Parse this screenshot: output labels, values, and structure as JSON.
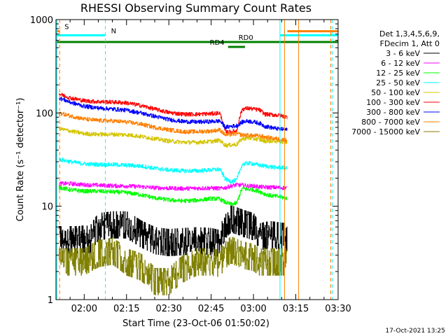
{
  "chart_data": {
    "type": "line",
    "title": "RHESSI Observing Summary Count Rates",
    "xlabel": "Start Time (23-Oct-06 01:50:02)",
    "ylabel": "Count Rate (s⁻¹ detector⁻¹)",
    "y_scale": "log",
    "ylim": [
      1,
      1000
    ],
    "xlim_minutes": [
      0,
      100
    ],
    "x_ticks": [
      {
        "label": "02:00",
        "minute": 10
      },
      {
        "label": "02:15",
        "minute": 25
      },
      {
        "label": "02:30",
        "minute": 40
      },
      {
        "label": "02:45",
        "minute": 55
      },
      {
        "label": "03:00",
        "minute": 70
      },
      {
        "label": "03:15",
        "minute": 85
      },
      {
        "label": "03:30",
        "minute": 100
      }
    ],
    "y_ticks": [
      {
        "label": "1",
        "value": 1
      },
      {
        "label": "10",
        "value": 10
      },
      {
        "label": "100",
        "value": 100
      },
      {
        "label": "1000",
        "value": 1000
      }
    ],
    "legend": {
      "header_line1": "Det 1,3,4,5,6,9,",
      "header_line2": "FDecim 1, Att 0",
      "placement": "right"
    },
    "series": [
      {
        "name": "3 - 6 keV",
        "color": "#000000",
        "x": [
          1,
          5,
          8,
          10,
          12,
          15,
          20,
          25,
          30,
          35,
          40,
          45,
          50,
          55,
          58,
          60,
          62,
          64,
          66,
          68,
          70,
          72,
          74,
          76,
          78,
          80,
          82
        ],
        "y": [
          4.5,
          4.5,
          4.5,
          4.6,
          4.5,
          6.2,
          6.5,
          6.5,
          5.2,
          4.4,
          4.2,
          4.3,
          4.4,
          4.3,
          4.1,
          6.5,
          7.5,
          7.2,
          6.8,
          6.5,
          6.2,
          4.8,
          5.0,
          5.1,
          5.0,
          4.9,
          4.8
        ]
      },
      {
        "name": "6 - 12 keV",
        "color": "#ff00ff",
        "x": [
          1,
          5,
          10,
          15,
          20,
          25,
          30,
          35,
          40,
          45,
          50,
          55,
          58,
          60,
          62,
          64,
          66,
          68,
          70,
          72,
          74,
          76,
          78,
          80,
          82
        ],
        "y": [
          17.5,
          17.5,
          17,
          16.8,
          16.6,
          16.5,
          16.2,
          15.8,
          15.6,
          15.5,
          15.6,
          15.7,
          15.5,
          15.8,
          16.5,
          17,
          16.8,
          16.5,
          16.5,
          16.2,
          16.0,
          16.0,
          15.9,
          15.8,
          15.7
        ]
      },
      {
        "name": "12 - 25 keV",
        "color": "#00ff00",
        "x": [
          1,
          5,
          10,
          15,
          20,
          25,
          30,
          35,
          40,
          45,
          50,
          55,
          58,
          60,
          62,
          64,
          66,
          68,
          70,
          72,
          74,
          76,
          78,
          80,
          82
        ],
        "y": [
          16,
          15,
          14.5,
          14.5,
          14.3,
          14.0,
          13.3,
          12.3,
          11.7,
          11.4,
          11.6,
          12.1,
          12.0,
          11.0,
          10.5,
          10.8,
          15.5,
          15.2,
          15.0,
          14.5,
          13.5,
          13.0,
          12.8,
          12.5,
          12.2
        ]
      },
      {
        "name": "25 - 50 keV",
        "color": "#00ffff",
        "x": [
          1,
          5,
          10,
          15,
          20,
          25,
          30,
          35,
          40,
          45,
          50,
          55,
          58,
          60,
          62,
          64,
          66,
          68,
          70,
          72,
          74,
          76,
          78,
          80,
          82
        ],
        "y": [
          32,
          30,
          28.5,
          28,
          28,
          27.5,
          27,
          25.5,
          24.5,
          24,
          24,
          24.5,
          25,
          19.5,
          18.5,
          19,
          28,
          29,
          28.5,
          27.5,
          27,
          26.5,
          26,
          26,
          25.5
        ]
      },
      {
        "name": "50 - 100 keV",
        "color": "#d4c400",
        "x": [
          1,
          5,
          10,
          15,
          20,
          25,
          30,
          35,
          40,
          45,
          50,
          55,
          58,
          60,
          62,
          64,
          66,
          68,
          70,
          72,
          74,
          76,
          78,
          80,
          82
        ],
        "y": [
          68,
          64,
          60,
          59,
          59,
          58.5,
          56,
          53,
          50,
          48.5,
          48.5,
          49.5,
          51,
          45,
          45.5,
          46,
          53,
          54,
          53,
          52,
          50,
          50,
          50,
          49.5,
          49
        ]
      },
      {
        "name": "100 - 300 keV",
        "color": "#ff0000",
        "x": [
          1,
          5,
          10,
          15,
          20,
          25,
          30,
          35,
          40,
          45,
          50,
          55,
          58,
          60,
          62,
          64,
          66,
          68,
          70,
          72,
          74,
          76,
          78,
          80,
          82
        ],
        "y": [
          160,
          145,
          135,
          132,
          131,
          128,
          120,
          110,
          101,
          97,
          97,
          98,
          100,
          62,
          63,
          64,
          110,
          112,
          110,
          108,
          97,
          96,
          95,
          93,
          90
        ]
      },
      {
        "name": "300 - 800 keV",
        "color": "#0000ff",
        "x": [
          1,
          5,
          10,
          15,
          20,
          25,
          30,
          35,
          40,
          45,
          50,
          55,
          58,
          60,
          62,
          64,
          66,
          68,
          70,
          72,
          74,
          76,
          78,
          80,
          82
        ],
        "y": [
          145,
          130,
          118,
          113,
          110,
          107,
          100,
          92,
          85,
          81,
          80,
          81,
          82,
          70,
          72,
          73,
          80,
          82,
          80,
          78,
          72,
          70,
          68,
          67,
          66
        ]
      },
      {
        "name": "800 - 7000 keV",
        "color": "#ff8000",
        "x": [
          1,
          5,
          10,
          15,
          20,
          25,
          30,
          35,
          40,
          45,
          50,
          55,
          58,
          60,
          62,
          64,
          66,
          68,
          70,
          72,
          74,
          76,
          78,
          80,
          82
        ],
        "y": [
          100,
          93,
          86,
          83,
          82,
          80,
          76,
          70,
          66,
          63,
          63,
          64,
          66,
          58,
          59,
          60,
          58,
          58,
          57,
          57,
          55,
          54,
          53,
          52,
          51
        ]
      },
      {
        "name": "7000 - 15000 keV",
        "color": "#808000",
        "x": [
          1,
          5,
          10,
          15,
          20,
          25,
          30,
          35,
          40,
          45,
          50,
          55,
          58,
          60,
          62,
          64,
          66,
          68,
          70,
          72,
          74,
          76,
          78,
          80,
          82
        ],
        "y": [
          2.6,
          2.6,
          2.6,
          3.2,
          3.4,
          2.6,
          2.3,
          1.6,
          1.6,
          2.2,
          2.6,
          2.6,
          2.5,
          3.1,
          3.5,
          3.3,
          3.1,
          3.0,
          2.9,
          2.6,
          2.6,
          2.6,
          2.6,
          2.6,
          2.6
        ]
      }
    ],
    "vertical_lines": [
      {
        "minute": 0.3,
        "color": "#00ffff",
        "style": "solid"
      },
      {
        "minute": 1.3,
        "color": "#ff8000",
        "style": "dashed"
      },
      {
        "minute": 17.5,
        "color": "#00ffff",
        "style": "dashed"
      },
      {
        "minute": 79.4,
        "color": "#00ffff",
        "style": "solid"
      },
      {
        "minute": 81.0,
        "color": "#ff8000",
        "style": "solid"
      },
      {
        "minute": 86.0,
        "color": "#ff8000",
        "style": "solid"
      },
      {
        "minute": 97.4,
        "color": "#ff8000",
        "style": "dashed"
      },
      {
        "minute": 97.9,
        "color": "#00ffff",
        "style": "dashed"
      }
    ],
    "bars": [
      {
        "label": "S",
        "color": "#ff8000",
        "segments": [
          [
            0.3,
            1.4
          ],
          [
            82,
            100
          ]
        ],
        "value": 750,
        "label_minute": 3.0
      },
      {
        "label": "N",
        "color": "#00ffff",
        "segments": [
          [
            0.3,
            17.5
          ],
          [
            79.5,
            100
          ]
        ],
        "value": 680,
        "label_minute": 19.5
      },
      {
        "label": "RD0",
        "color": "#008000",
        "segments": [
          [
            0.3,
            100
          ]
        ],
        "value": 575,
        "label_minute": 64.7
      },
      {
        "label": "RD4",
        "color": "#008000",
        "segments": [
          [
            61,
            67
          ]
        ],
        "value": 510,
        "label_minute": 54.5
      }
    ]
  },
  "timestamp": "17-Oct-2021 13:25"
}
